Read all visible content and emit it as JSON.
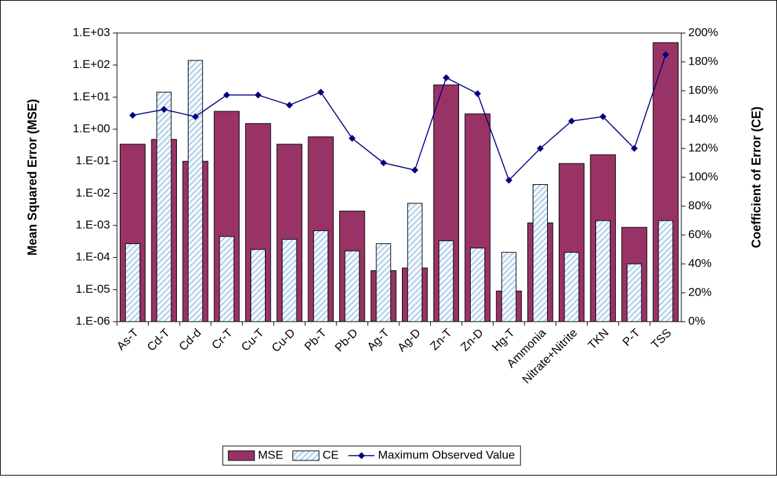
{
  "chart_data": {
    "type": "bar",
    "categories": [
      "As-T",
      "Cd-T",
      "Cd-d",
      "Cr-T",
      "Cu-T",
      "Cu-D",
      "Pb-T",
      "Pb-D",
      "Ag-T",
      "Ag-D",
      "Zn-T",
      "Zn-D",
      "Hg-T",
      "Ammonia",
      "Nitrate+Nitrite",
      "TKN",
      "P-T",
      "TSS"
    ],
    "series": [
      {
        "name": "MSE",
        "type": "bar",
        "color": "#993366",
        "values": [
          0.34,
          0.48,
          0.1,
          3.6,
          1.5,
          0.34,
          0.58,
          0.0028,
          3.9e-05,
          4.7e-05,
          24,
          3,
          9e-06,
          0.0012,
          0.085,
          0.16,
          0.00087,
          500
        ]
      },
      {
        "name": "CE",
        "type": "bar",
        "axis": "y2",
        "color": "#bcd7ee",
        "values": [
          54,
          159,
          181,
          59,
          50,
          57,
          63,
          49,
          54,
          82,
          56,
          51,
          48,
          95,
          48,
          70,
          40,
          70
        ]
      },
      {
        "name": "Maximum Observed Value",
        "type": "line",
        "axis": "y2",
        "color": "#000080",
        "values": [
          143,
          147,
          142,
          157,
          157,
          150,
          159,
          127,
          110,
          105,
          169,
          158,
          98,
          120,
          139,
          142,
          120,
          185
        ]
      }
    ],
    "ylabel": "Mean Squared Error (MSE)",
    "y2label": "Coefficient of Error (CE)",
    "yscale": "log",
    "ylim": [
      1e-06,
      1000
    ],
    "yticks": [
      {
        "value": 1e-06,
        "label": "1.E-06"
      },
      {
        "value": 1e-05,
        "label": "1.E-05"
      },
      {
        "value": 0.0001,
        "label": "1.E-04"
      },
      {
        "value": 0.001,
        "label": "1.E-03"
      },
      {
        "value": 0.01,
        "label": "1.E-02"
      },
      {
        "value": 0.1,
        "label": "1.E-01"
      },
      {
        "value": 1,
        "label": "1.E+00"
      },
      {
        "value": 10,
        "label": "1.E+01"
      },
      {
        "value": 100,
        "label": "1.E+02"
      },
      {
        "value": 1000,
        "label": "1.E+03"
      }
    ],
    "y2lim": [
      0,
      200
    ],
    "y2ticks": [
      {
        "value": 0,
        "label": "0%"
      },
      {
        "value": 20,
        "label": "20%"
      },
      {
        "value": 40,
        "label": "40%"
      },
      {
        "value": 60,
        "label": "60%"
      },
      {
        "value": 80,
        "label": "80%"
      },
      {
        "value": 100,
        "label": "100%"
      },
      {
        "value": 120,
        "label": "120%"
      },
      {
        "value": 140,
        "label": "140%"
      },
      {
        "value": 160,
        "label": "160%"
      },
      {
        "value": 180,
        "label": "180%"
      },
      {
        "value": 200,
        "label": "200%"
      }
    ],
    "legend": "bottom"
  }
}
